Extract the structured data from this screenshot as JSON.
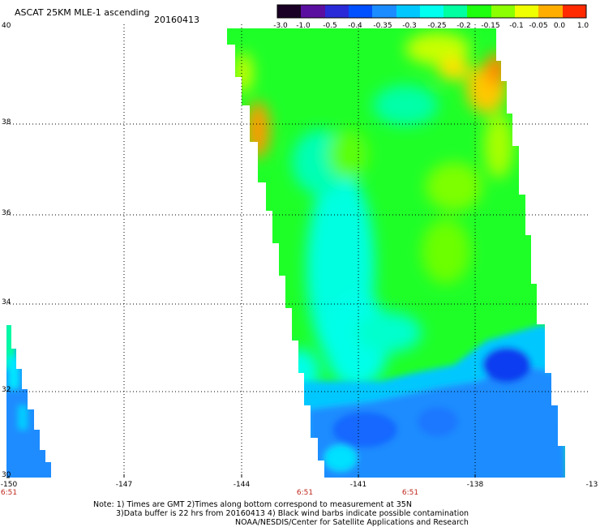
{
  "header": {
    "title": "ASCAT 25KM MLE-1 ascending",
    "date": "20160413"
  },
  "colorbar": {
    "labels": [
      "-3.0",
      "-1.0",
      "-0.5",
      "-0.4",
      "-0.35",
      "-0.3",
      "-0.25",
      "-0.2",
      "-0.15",
      "-0.1",
      "-0.05",
      "0.0",
      "1.0"
    ],
    "colors": [
      "#1a0024",
      "#5b0fa0",
      "#2a2ad8",
      "#0050ff",
      "#1b8cff",
      "#00c8ff",
      "#00ffee",
      "#00ffa0",
      "#1eff10",
      "#8cff00",
      "#f0ff00",
      "#ffae00",
      "#ff2a00"
    ]
  },
  "axes": {
    "lat_labels": [
      "40",
      "38",
      "36",
      "34",
      "32",
      "30"
    ],
    "lon_labels": [
      "-150",
      "-147",
      "-144",
      "-141",
      "-138",
      "-13"
    ],
    "times": [
      "6:51",
      "6:51",
      "6:51"
    ]
  },
  "notes": {
    "line1": "Note: 1) Times are GMT 2)Times along bottom correspond to measurement at 35N",
    "line2": "3)Data buffer is 22 hrs from 20160413 4) Black wind barbs indicate possible contamination",
    "line3": "NOAA/NESDIS/Center for Satellite Applications and Research"
  }
}
